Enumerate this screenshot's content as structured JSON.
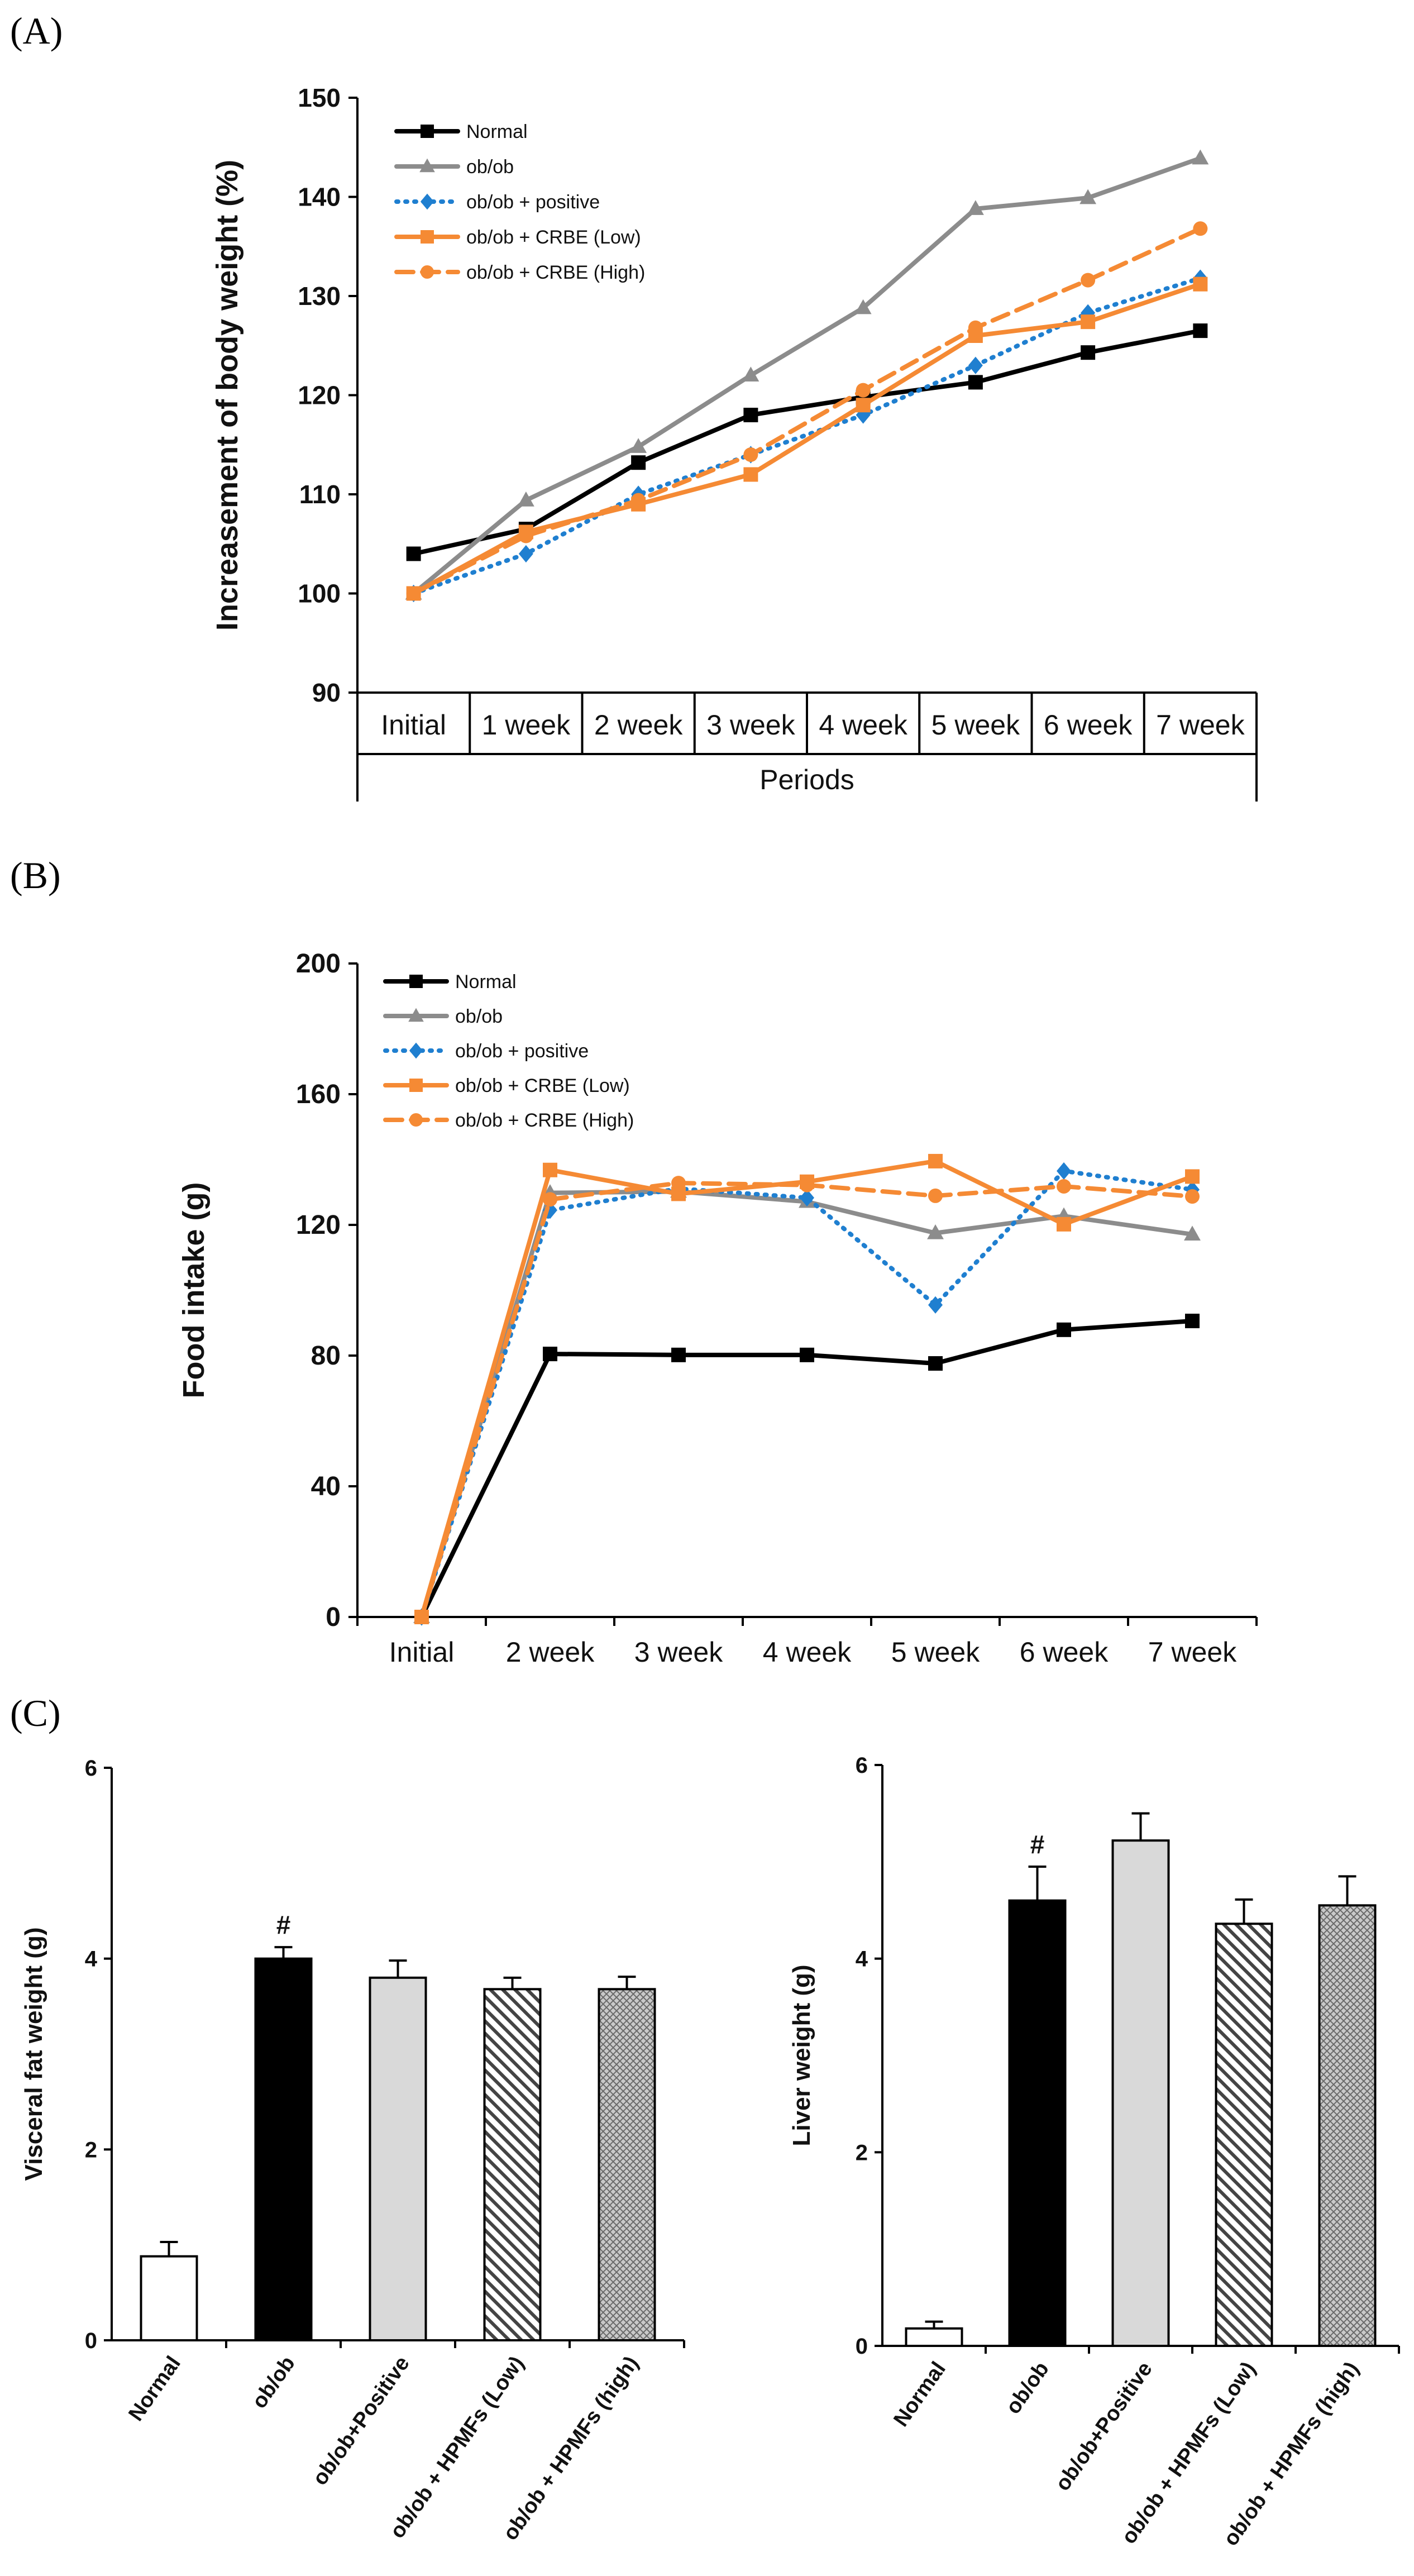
{
  "figure": {
    "panel_labels": [
      "(A)",
      "(B)",
      "(C)"
    ]
  },
  "chart_data": [
    {
      "id": "A",
      "type": "line",
      "ylabel": "Increasement  of body weight (%)",
      "xlabel": "Periods",
      "ylim": [
        90,
        150
      ],
      "yticks": [
        90,
        100,
        110,
        120,
        130,
        140,
        150
      ],
      "categories": [
        "Initial",
        "1 week",
        "2 week",
        "3 week",
        "4 week",
        "5 week",
        "6 week",
        "7 week"
      ],
      "legend_position": "top-left",
      "series": [
        {
          "name": "Normal",
          "color": "#000000",
          "dash": "solid",
          "marker": "square",
          "values": [
            104,
            106.5,
            113.2,
            118,
            119.8,
            121.3,
            124.3,
            126.5
          ]
        },
        {
          "name": "ob/ob",
          "color": "#8c8c8c",
          "dash": "solid",
          "marker": "triangle",
          "values": [
            100,
            109.4,
            114.8,
            122,
            128.8,
            138.8,
            139.9,
            143.9
          ]
        },
        {
          "name": "ob/ob + positive",
          "color": "#1f7fd0",
          "dash": "dotted",
          "marker": "diamond",
          "values": [
            100,
            104,
            110,
            114,
            118,
            123,
            128.3,
            131.8
          ]
        },
        {
          "name": "ob/ob + CRBE (Low)",
          "color": "#f58a34",
          "dash": "solid",
          "marker": "square",
          "values": [
            100,
            106.2,
            109,
            112,
            119,
            126,
            127.4,
            131.2
          ]
        },
        {
          "name": "ob/ob + CRBE (High)",
          "color": "#f58a34",
          "dash": "dashed",
          "marker": "circle",
          "values": [
            100,
            105.8,
            109.4,
            114,
            120.5,
            126.8,
            131.6,
            136.8
          ]
        }
      ]
    },
    {
      "id": "B",
      "type": "line",
      "ylabel": "Food intake (g)",
      "xlabel": "",
      "ylim": [
        0,
        200
      ],
      "yticks": [
        0,
        40,
        80,
        120,
        160,
        200
      ],
      "categories": [
        "Initial",
        "2 week",
        "3 week",
        "4 week",
        "5 week",
        "6 week",
        "7 week"
      ],
      "legend_position": "top-left",
      "series": [
        {
          "name": "Normal",
          "color": "#000000",
          "dash": "solid",
          "marker": "square",
          "values": [
            0,
            80.5,
            80.2,
            80.2,
            77.6,
            87.9,
            90.6
          ]
        },
        {
          "name": "ob/ob",
          "color": "#8c8c8c",
          "dash": "solid",
          "marker": "triangle",
          "values": [
            0,
            129.8,
            130.2,
            127.1,
            117.5,
            122.7,
            117.1
          ]
        },
        {
          "name": "ob/ob + positive",
          "color": "#1f7fd0",
          "dash": "dotted",
          "marker": "diamond",
          "values": [
            0,
            124.5,
            131.1,
            128.3,
            95.5,
            136.5,
            130.8
          ]
        },
        {
          "name": "ob/ob + CRBE (Low)",
          "color": "#f58a34",
          "dash": "solid",
          "marker": "square",
          "values": [
            0,
            136.8,
            129.5,
            133.2,
            139.5,
            120.2,
            134.8
          ]
        },
        {
          "name": "ob/ob + CRBE (High)",
          "color": "#f58a34",
          "dash": "dashed",
          "marker": "circle",
          "values": [
            0,
            127.8,
            132.8,
            132.2,
            128.9,
            131.8,
            128.7
          ]
        }
      ]
    },
    {
      "id": "C-left",
      "type": "bar",
      "ylabel": "Visceral fat weight (g)",
      "ylim": [
        0,
        6
      ],
      "yticks": [
        0,
        2,
        4,
        6
      ],
      "categories": [
        "Normal",
        "ob/ob",
        "ob/ob+Positive",
        "ob/ob + HPMFs (Low)",
        "ob/ob + HPMFs (high)"
      ],
      "values": [
        0.88,
        4.0,
        3.8,
        3.68,
        3.68
      ],
      "errors": [
        0.15,
        0.12,
        0.18,
        0.12,
        0.13
      ],
      "fills": [
        "white",
        "black",
        "lightgray",
        "diagonal-hatch",
        "crosshatch"
      ],
      "annotations": [
        {
          "category": "ob/ob",
          "text": "#"
        }
      ]
    },
    {
      "id": "C-right",
      "type": "bar",
      "ylabel": "Liver weight (g)",
      "ylim": [
        0,
        6
      ],
      "yticks": [
        0,
        2,
        4,
        6
      ],
      "categories": [
        "Normal",
        "ob/ob",
        "ob/ob+Positive",
        "ob/ob + HPMFs (Low)",
        "ob/ob + HPMFs (high)"
      ],
      "values": [
        0.18,
        4.6,
        5.22,
        4.36,
        4.55
      ],
      "errors": [
        0.07,
        0.35,
        0.28,
        0.25,
        0.3
      ],
      "fills": [
        "white",
        "black",
        "lightgray",
        "diagonal-hatch",
        "crosshatch"
      ],
      "annotations": [
        {
          "category": "ob/ob",
          "text": "#"
        }
      ]
    }
  ]
}
